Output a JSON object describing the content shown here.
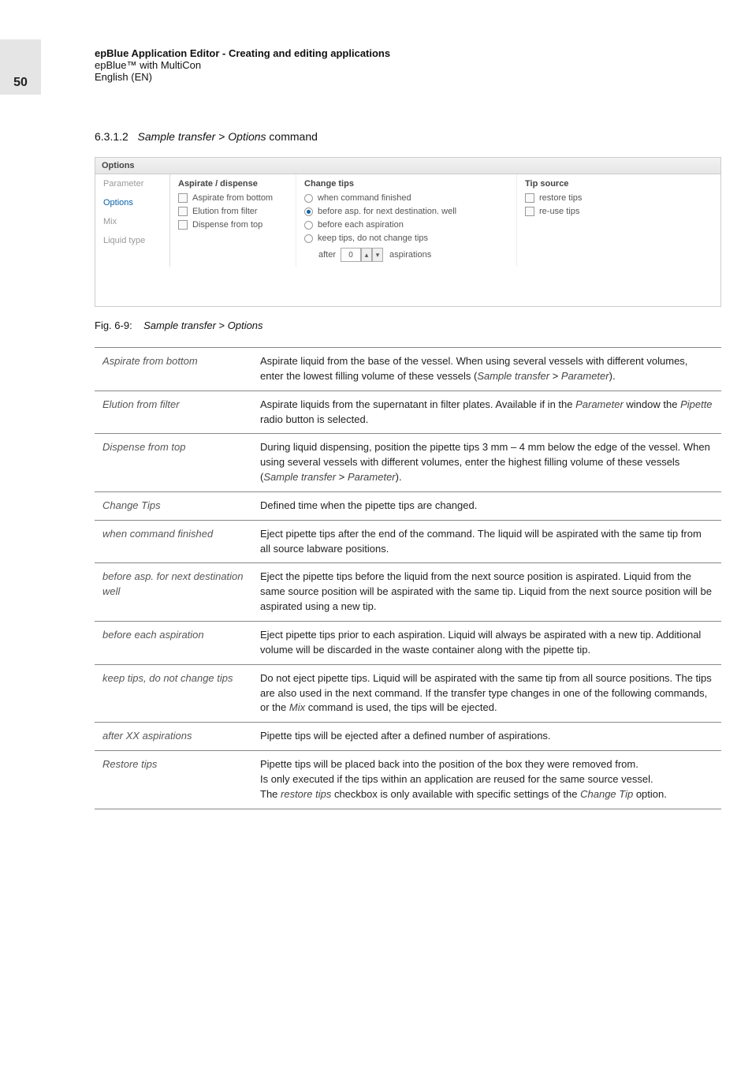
{
  "page_number": "50",
  "header": {
    "line1": "epBlue Application Editor - Creating and editing applications",
    "line2": "epBlue™ with MultiCon",
    "line3": "English (EN)"
  },
  "section": {
    "number": "6.3.1.2",
    "title_part1": "Sample transfer",
    "title_sep": " > ",
    "title_part2": "Options",
    "title_suffix": " command"
  },
  "screenshot": {
    "panel_title": "Options",
    "tabs": {
      "parameter": "Parameter",
      "options": "Options",
      "mix": "Mix",
      "liquid_type": "Liquid type"
    },
    "aspirate_dispense": {
      "header": "Aspirate / dispense",
      "aspirate_from_bottom": "Aspirate from bottom",
      "elution_from_filter": "Elution from filter",
      "dispense_from_top": "Dispense from top"
    },
    "change_tips": {
      "header": "Change tips",
      "when_command_finished": "when command finished",
      "before_asp_next_dest": "before asp. for next destination. well",
      "before_each_aspiration": "before each aspiration",
      "keep_tips": "keep tips, do not change tips",
      "after_label": "after",
      "after_value": "0",
      "aspirations_label": "aspirations"
    },
    "tip_source": {
      "header": "Tip source",
      "restore_tips": "restore tips",
      "reuse_tips": "re-use tips"
    }
  },
  "figure": {
    "label": "Fig. 6-9:",
    "caption_part1": "Sample transfer",
    "caption_sep": " > ",
    "caption_part2": "Options"
  },
  "table": {
    "rows": [
      {
        "left": "Aspirate from bottom",
        "right": "Aspirate liquid from the base of the vessel. When using several vessels with different volumes, enter the lowest filling volume of these vessels (<span class='ital'>Sample transfer</span> > <span class='ital'>Parameter</span>)."
      },
      {
        "left": "Elution from filter",
        "right": "Aspirate liquids from the supernatant in filter plates. Available if in the <span class='ital'>Parameter</span> window the <span class='ital'>Pipette</span> radio button is selected."
      },
      {
        "left": "Dispense from top",
        "right": "During liquid dispensing, position the pipette tips 3 mm – 4 mm below the edge of the vessel. When using several vessels with different volumes, enter the highest filling volume of these vessels (<span class='ital'>Sample transfer</span> > <span class='ital'>Parameter</span>)."
      },
      {
        "left": "Change Tips",
        "right": "Defined time when the pipette tips are changed."
      },
      {
        "left": "when command finished",
        "right": "Eject pipette tips after the end of the command. The liquid will be aspirated with the same tip from all source labware positions."
      },
      {
        "left": "before asp. for next destination well",
        "right": "Eject the pipette tips before the liquid from the next source position is aspirated. Liquid from the same source position will be aspirated with the same tip. Liquid from the next source position will be aspirated using a new tip."
      },
      {
        "left": "before each aspiration",
        "right": "Eject pipette tips prior to each aspiration. Liquid will always be aspirated with a new tip. Additional volume will be discarded in the waste container along with the pipette tip."
      },
      {
        "left": "keep tips, do not change tips",
        "right": "Do not eject pipette tips. Liquid will be aspirated with the same tip from all source positions. The tips are also used in the next command. If the transfer type changes in one of the following commands, or the <span class='ital'>Mix</span> command is used, the tips will be ejected."
      },
      {
        "left": "after XX aspirations",
        "right": "Pipette tips will be ejected after a defined number of aspirations."
      },
      {
        "left": "Restore tips",
        "right": "Pipette tips will be placed back into the position of the box they were removed from.<br>Is only executed if the tips within an application are reused for the same source vessel.<br>The <span class='ital'>restore tips</span> checkbox is only available with specific settings of the <span class='ital'>Change Tip</span> option."
      }
    ]
  }
}
